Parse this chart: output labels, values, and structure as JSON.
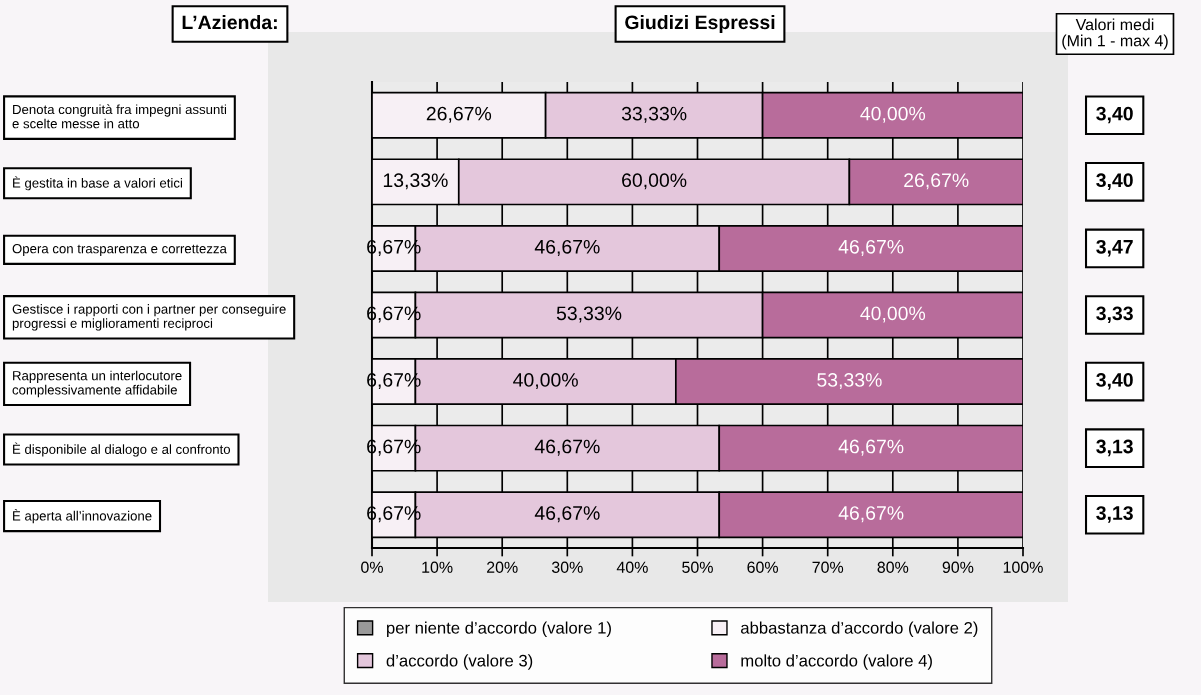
{
  "chart_data": {
    "type": "bar",
    "orientation": "horizontal",
    "stacked": true,
    "title": "Giudizi Espressi",
    "ylabel": "L’Azienda:",
    "categories": [
      "Denota congruità fra impegni assunti\ne scelte messe in atto",
      "È gestita in base a valori etici",
      "Opera con trasparenza e correttezza",
      "Gestisce i rapporti con i partner per conseguire\nprogressi e miglioramenti reciproci",
      "Rappresenta un interlocutore\ncomplessivamente affidabile",
      "È disponibile al dialogo e al confronto",
      "È aperta all’innovazione"
    ],
    "series": [
      {
        "name": "per niente d’accordo (valore 1)",
        "color": "#999999",
        "values": [
          0,
          0,
          0,
          0,
          0,
          0,
          0
        ],
        "value_labels": [
          null,
          null,
          null,
          null,
          null,
          null,
          null
        ]
      },
      {
        "name": "abbastanza d’accordo (valore 2)",
        "color": "#f7f0f5",
        "values": [
          26.67,
          13.33,
          6.67,
          6.67,
          6.67,
          6.67,
          6.67
        ],
        "value_labels": [
          "26,67%",
          "13,33%",
          "6,67%",
          "6,67%",
          "6,67%",
          "6,67%",
          "6,67%"
        ]
      },
      {
        "name": "d’accordo (valore 3)",
        "color": "#e4c7dc",
        "values": [
          33.33,
          60.0,
          46.67,
          53.33,
          40.0,
          46.67,
          46.67
        ],
        "value_labels": [
          "33,33%",
          "60,00%",
          "46,67%",
          "53,33%",
          "40,00%",
          "46,67%",
          "46,67%"
        ]
      },
      {
        "name": "molto d’accordo (valore 4)",
        "color": "#b86c9b",
        "values": [
          40.0,
          26.67,
          46.67,
          40.0,
          53.33,
          46.67,
          46.67
        ],
        "value_labels": [
          "40,00%",
          "26,67%",
          "46,67%",
          "40,00%",
          "53,33%",
          "46,67%",
          "46,67%"
        ]
      }
    ],
    "xlim": [
      0,
      100
    ],
    "xticks": [
      {
        "value": 0,
        "label": "0%"
      },
      {
        "value": 10,
        "label": "10%"
      },
      {
        "value": 20,
        "label": "20%"
      },
      {
        "value": 30,
        "label": "30%"
      },
      {
        "value": 40,
        "label": "40%"
      },
      {
        "value": 50,
        "label": "50%"
      },
      {
        "value": 60,
        "label": "60%"
      },
      {
        "value": 70,
        "label": "70%"
      },
      {
        "value": 80,
        "label": "80%"
      },
      {
        "value": 90,
        "label": "90%"
      },
      {
        "value": 100,
        "label": "100%"
      }
    ],
    "grid": "x",
    "legend": "bottom",
    "annotations": [
      "Valori medi\n(Min 1 - max 4)",
      "3,40",
      "3,40",
      "3,47",
      "3,33",
      "3,40",
      "3,13",
      "3,13"
    ]
  }
}
